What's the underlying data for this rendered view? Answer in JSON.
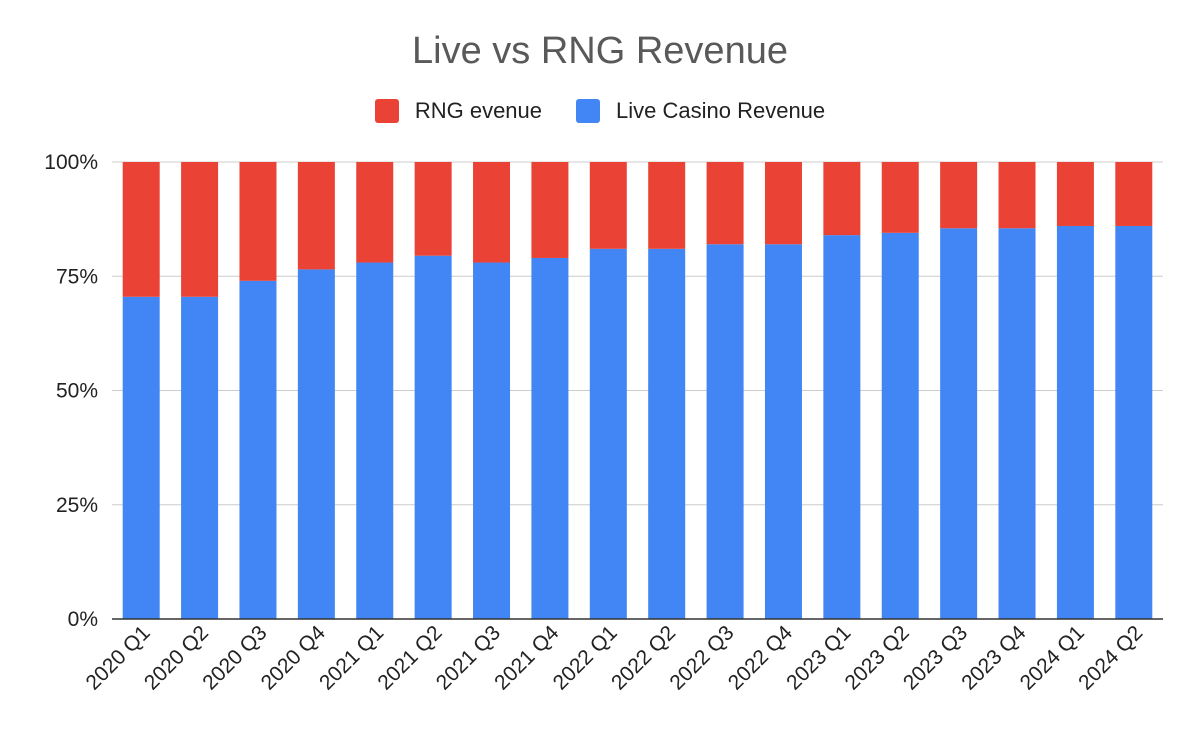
{
  "chart_data": {
    "type": "bar",
    "stacked": true,
    "percent": true,
    "title": "Live vs RNG Revenue",
    "xlabel": "",
    "ylabel": "",
    "ylim": [
      0,
      100
    ],
    "y_ticks": [
      "0%",
      "25%",
      "50%",
      "75%",
      "100%"
    ],
    "y_tick_values": [
      0,
      25,
      50,
      75,
      100
    ],
    "grid": true,
    "legend_position": "top",
    "categories": [
      "2020 Q1",
      "2020 Q2",
      "2020 Q3",
      "2020 Q4",
      "2021 Q1",
      "2021 Q2",
      "2021 Q3",
      "2021 Q4",
      "2022 Q1",
      "2022 Q2",
      "2022 Q3",
      "2022 Q4",
      "2023 Q1",
      "2023 Q2",
      "2023 Q3",
      "2023 Q4",
      "2024 Q1",
      "2024 Q2"
    ],
    "series": [
      {
        "name": "RNG evenue",
        "color": "#ea4335",
        "values": [
          29.5,
          29.5,
          26,
          23.5,
          22,
          20.5,
          22,
          21,
          19,
          19,
          18,
          18,
          16,
          15.5,
          14.5,
          14.5,
          14,
          14
        ]
      },
      {
        "name": "Live Casino Revenue",
        "color": "#4285f4",
        "values": [
          70.5,
          70.5,
          74,
          76.5,
          78,
          79.5,
          78,
          79,
          81,
          81,
          82,
          82,
          84,
          84.5,
          85.5,
          85.5,
          86,
          86
        ]
      }
    ]
  }
}
